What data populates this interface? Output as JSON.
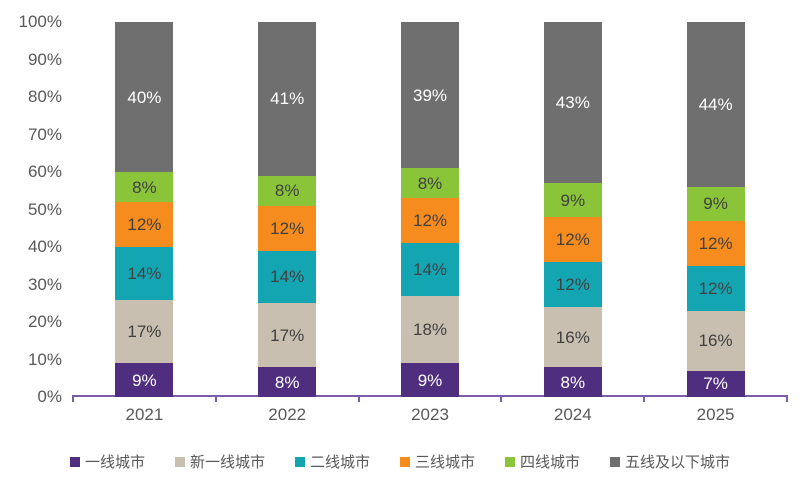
{
  "chart_data": {
    "type": "bar",
    "stacked": true,
    "percent_stacked": true,
    "title": "",
    "xlabel": "",
    "ylabel": "",
    "categories": [
      "2021",
      "2022",
      "2023",
      "2024",
      "2025"
    ],
    "series": [
      {
        "name": "一线城市",
        "color": "#4F2D7F",
        "label_color": "#FFFFFF",
        "values": [
          9,
          8,
          9,
          8,
          7
        ]
      },
      {
        "name": "新一线城市",
        "color": "#C8BFB0",
        "label_color": "#404040",
        "values": [
          17,
          17,
          18,
          16,
          16
        ]
      },
      {
        "name": "二线城市",
        "color": "#14A5B3",
        "label_color": "#404040",
        "values": [
          14,
          14,
          14,
          12,
          12
        ]
      },
      {
        "name": "三线城市",
        "color": "#F68B1E",
        "label_color": "#404040",
        "values": [
          12,
          12,
          12,
          12,
          12
        ]
      },
      {
        "name": "四线城市",
        "color": "#8AC539",
        "label_color": "#404040",
        "values": [
          8,
          8,
          8,
          9,
          9
        ]
      },
      {
        "name": "五线及以下城市",
        "color": "#6F6F6F",
        "label_color": "#FFFFFF",
        "values": [
          40,
          41,
          39,
          43,
          44
        ]
      }
    ],
    "value_suffix": "%",
    "y_ticks": [
      "0%",
      "10%",
      "20%",
      "30%",
      "40%",
      "50%",
      "60%",
      "70%",
      "80%",
      "90%",
      "100%"
    ],
    "ylim": [
      0,
      100
    ],
    "grid": false,
    "legend_position": "bottom",
    "axis_color": "#7B5EA7",
    "tick_label_color": "#595959"
  }
}
